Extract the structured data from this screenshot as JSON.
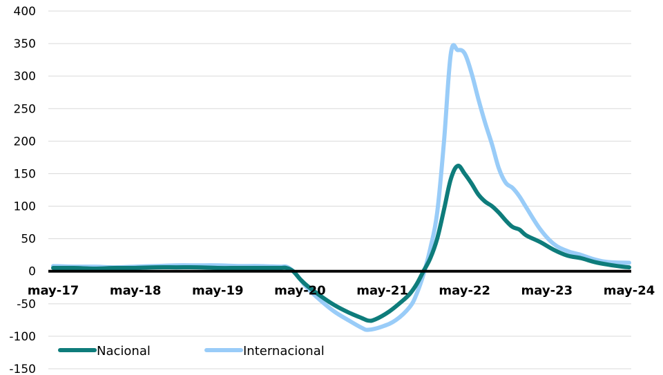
{
  "chart_data": {
    "type": "line",
    "title": "",
    "xlabel": "",
    "ylabel": "",
    "ylim": [
      -150,
      400
    ],
    "yticks": [
      -150,
      -100,
      -50,
      0,
      50,
      100,
      150,
      200,
      250,
      300,
      350,
      400
    ],
    "xlim": [
      "2017-05",
      "2024-05"
    ],
    "xticks": [
      {
        "date": "2017-05",
        "label": "may-17"
      },
      {
        "date": "2018-05",
        "label": "may-18"
      },
      {
        "date": "2019-05",
        "label": "may-19"
      },
      {
        "date": "2020-05",
        "label": "may-20"
      },
      {
        "date": "2021-05",
        "label": "may-21"
      },
      {
        "date": "2022-05",
        "label": "may-22"
      },
      {
        "date": "2023-05",
        "label": "may-23"
      },
      {
        "date": "2024-05",
        "label": "may-24"
      }
    ],
    "grid": true,
    "legend": "bottom-left",
    "series": [
      {
        "name": "Nacional",
        "color": "#0e7c7b",
        "points": [
          [
            "2017-05",
            5
          ],
          [
            "2017-08",
            5
          ],
          [
            "2017-11",
            4
          ],
          [
            "2018-02",
            5
          ],
          [
            "2018-05",
            5
          ],
          [
            "2018-08",
            6
          ],
          [
            "2018-11",
            6
          ],
          [
            "2019-02",
            6
          ],
          [
            "2019-05",
            5
          ],
          [
            "2019-08",
            5
          ],
          [
            "2019-11",
            5
          ],
          [
            "2020-02",
            5
          ],
          [
            "2020-03",
            5
          ],
          [
            "2020-04",
            0
          ],
          [
            "2020-05",
            -12
          ],
          [
            "2020-06",
            -22
          ],
          [
            "2020-08",
            -38
          ],
          [
            "2020-10",
            -52
          ],
          [
            "2020-12",
            -63
          ],
          [
            "2021-02",
            -72
          ],
          [
            "2021-03",
            -76
          ],
          [
            "2021-04",
            -74
          ],
          [
            "2021-06",
            -62
          ],
          [
            "2021-08",
            -45
          ],
          [
            "2021-09",
            -35
          ],
          [
            "2021-10",
            -20
          ],
          [
            "2021-11",
            0
          ],
          [
            "2021-12",
            20
          ],
          [
            "2022-01",
            50
          ],
          [
            "2022-02",
            95
          ],
          [
            "2022-03",
            142
          ],
          [
            "2022-04",
            162
          ],
          [
            "2022-05",
            150
          ],
          [
            "2022-06",
            135
          ],
          [
            "2022-07",
            118
          ],
          [
            "2022-08",
            107
          ],
          [
            "2022-09",
            100
          ],
          [
            "2022-10",
            90
          ],
          [
            "2022-11",
            78
          ],
          [
            "2022-12",
            68
          ],
          [
            "2023-01",
            64
          ],
          [
            "2023-02",
            55
          ],
          [
            "2023-04",
            45
          ],
          [
            "2023-06",
            33
          ],
          [
            "2023-08",
            24
          ],
          [
            "2023-10",
            20
          ],
          [
            "2023-12",
            14
          ],
          [
            "2024-02",
            10
          ],
          [
            "2024-04",
            7
          ],
          [
            "2024-05",
            6
          ]
        ]
      },
      {
        "name": "Internacional",
        "color": "#99ccf8",
        "points": [
          [
            "2017-05",
            8
          ],
          [
            "2017-08",
            7
          ],
          [
            "2017-11",
            7
          ],
          [
            "2018-02",
            6
          ],
          [
            "2018-05",
            7
          ],
          [
            "2018-08",
            8
          ],
          [
            "2018-11",
            9
          ],
          [
            "2019-02",
            9
          ],
          [
            "2019-05",
            9
          ],
          [
            "2019-08",
            8
          ],
          [
            "2019-11",
            8
          ],
          [
            "2020-02",
            7
          ],
          [
            "2020-03",
            7
          ],
          [
            "2020-04",
            0
          ],
          [
            "2020-05",
            -12
          ],
          [
            "2020-06",
            -25
          ],
          [
            "2020-08",
            -45
          ],
          [
            "2020-10",
            -62
          ],
          [
            "2020-12",
            -75
          ],
          [
            "2021-02",
            -87
          ],
          [
            "2021-03",
            -90
          ],
          [
            "2021-05",
            -85
          ],
          [
            "2021-07",
            -75
          ],
          [
            "2021-09",
            -55
          ],
          [
            "2021-10",
            -35
          ],
          [
            "2021-11",
            -5
          ],
          [
            "2021-12",
            35
          ],
          [
            "2022-01",
            90
          ],
          [
            "2022-02",
            200
          ],
          [
            "2022-03",
            335
          ],
          [
            "2022-04",
            340
          ],
          [
            "2022-05",
            335
          ],
          [
            "2022-06",
            305
          ],
          [
            "2022-07",
            265
          ],
          [
            "2022-08",
            228
          ],
          [
            "2022-09",
            195
          ],
          [
            "2022-10",
            158
          ],
          [
            "2022-11",
            136
          ],
          [
            "2022-12",
            128
          ],
          [
            "2023-01",
            115
          ],
          [
            "2023-02",
            98
          ],
          [
            "2023-04",
            65
          ],
          [
            "2023-06",
            42
          ],
          [
            "2023-08",
            31
          ],
          [
            "2023-10",
            25
          ],
          [
            "2023-12",
            18
          ],
          [
            "2024-02",
            14
          ],
          [
            "2024-05",
            13
          ]
        ]
      }
    ]
  }
}
